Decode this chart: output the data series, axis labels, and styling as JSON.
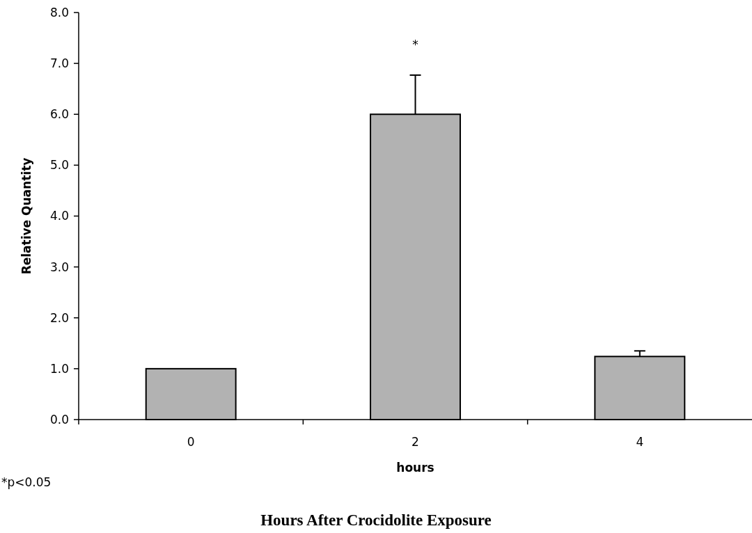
{
  "chart_data": {
    "type": "bar",
    "title": "Hours After Crocidolite Exposure",
    "xlabel": "hours",
    "ylabel": "Relative Quantity",
    "categories": [
      "0",
      "2",
      "4"
    ],
    "values": [
      1.0,
      6.0,
      1.24
    ],
    "errors": [
      null,
      [
        6.0,
        6.77
      ],
      [
        1.24,
        1.35
      ]
    ],
    "color": "#b2b2b2",
    "ylim": [
      0,
      8
    ],
    "yticks": [
      {
        "value": 0,
        "label": "0.0"
      },
      {
        "value": 1,
        "label": "1.0"
      },
      {
        "value": 2,
        "label": "2.0"
      },
      {
        "value": 3,
        "label": "3.0"
      },
      {
        "value": 4,
        "label": "4.0"
      },
      {
        "value": 5,
        "label": "5.0"
      },
      {
        "value": 6,
        "label": "6.0"
      },
      {
        "value": 7,
        "label": "7.0"
      },
      {
        "value": 8,
        "label": "8.0"
      }
    ],
    "annotations": [
      "*",
      "*p<0.05"
    ]
  }
}
